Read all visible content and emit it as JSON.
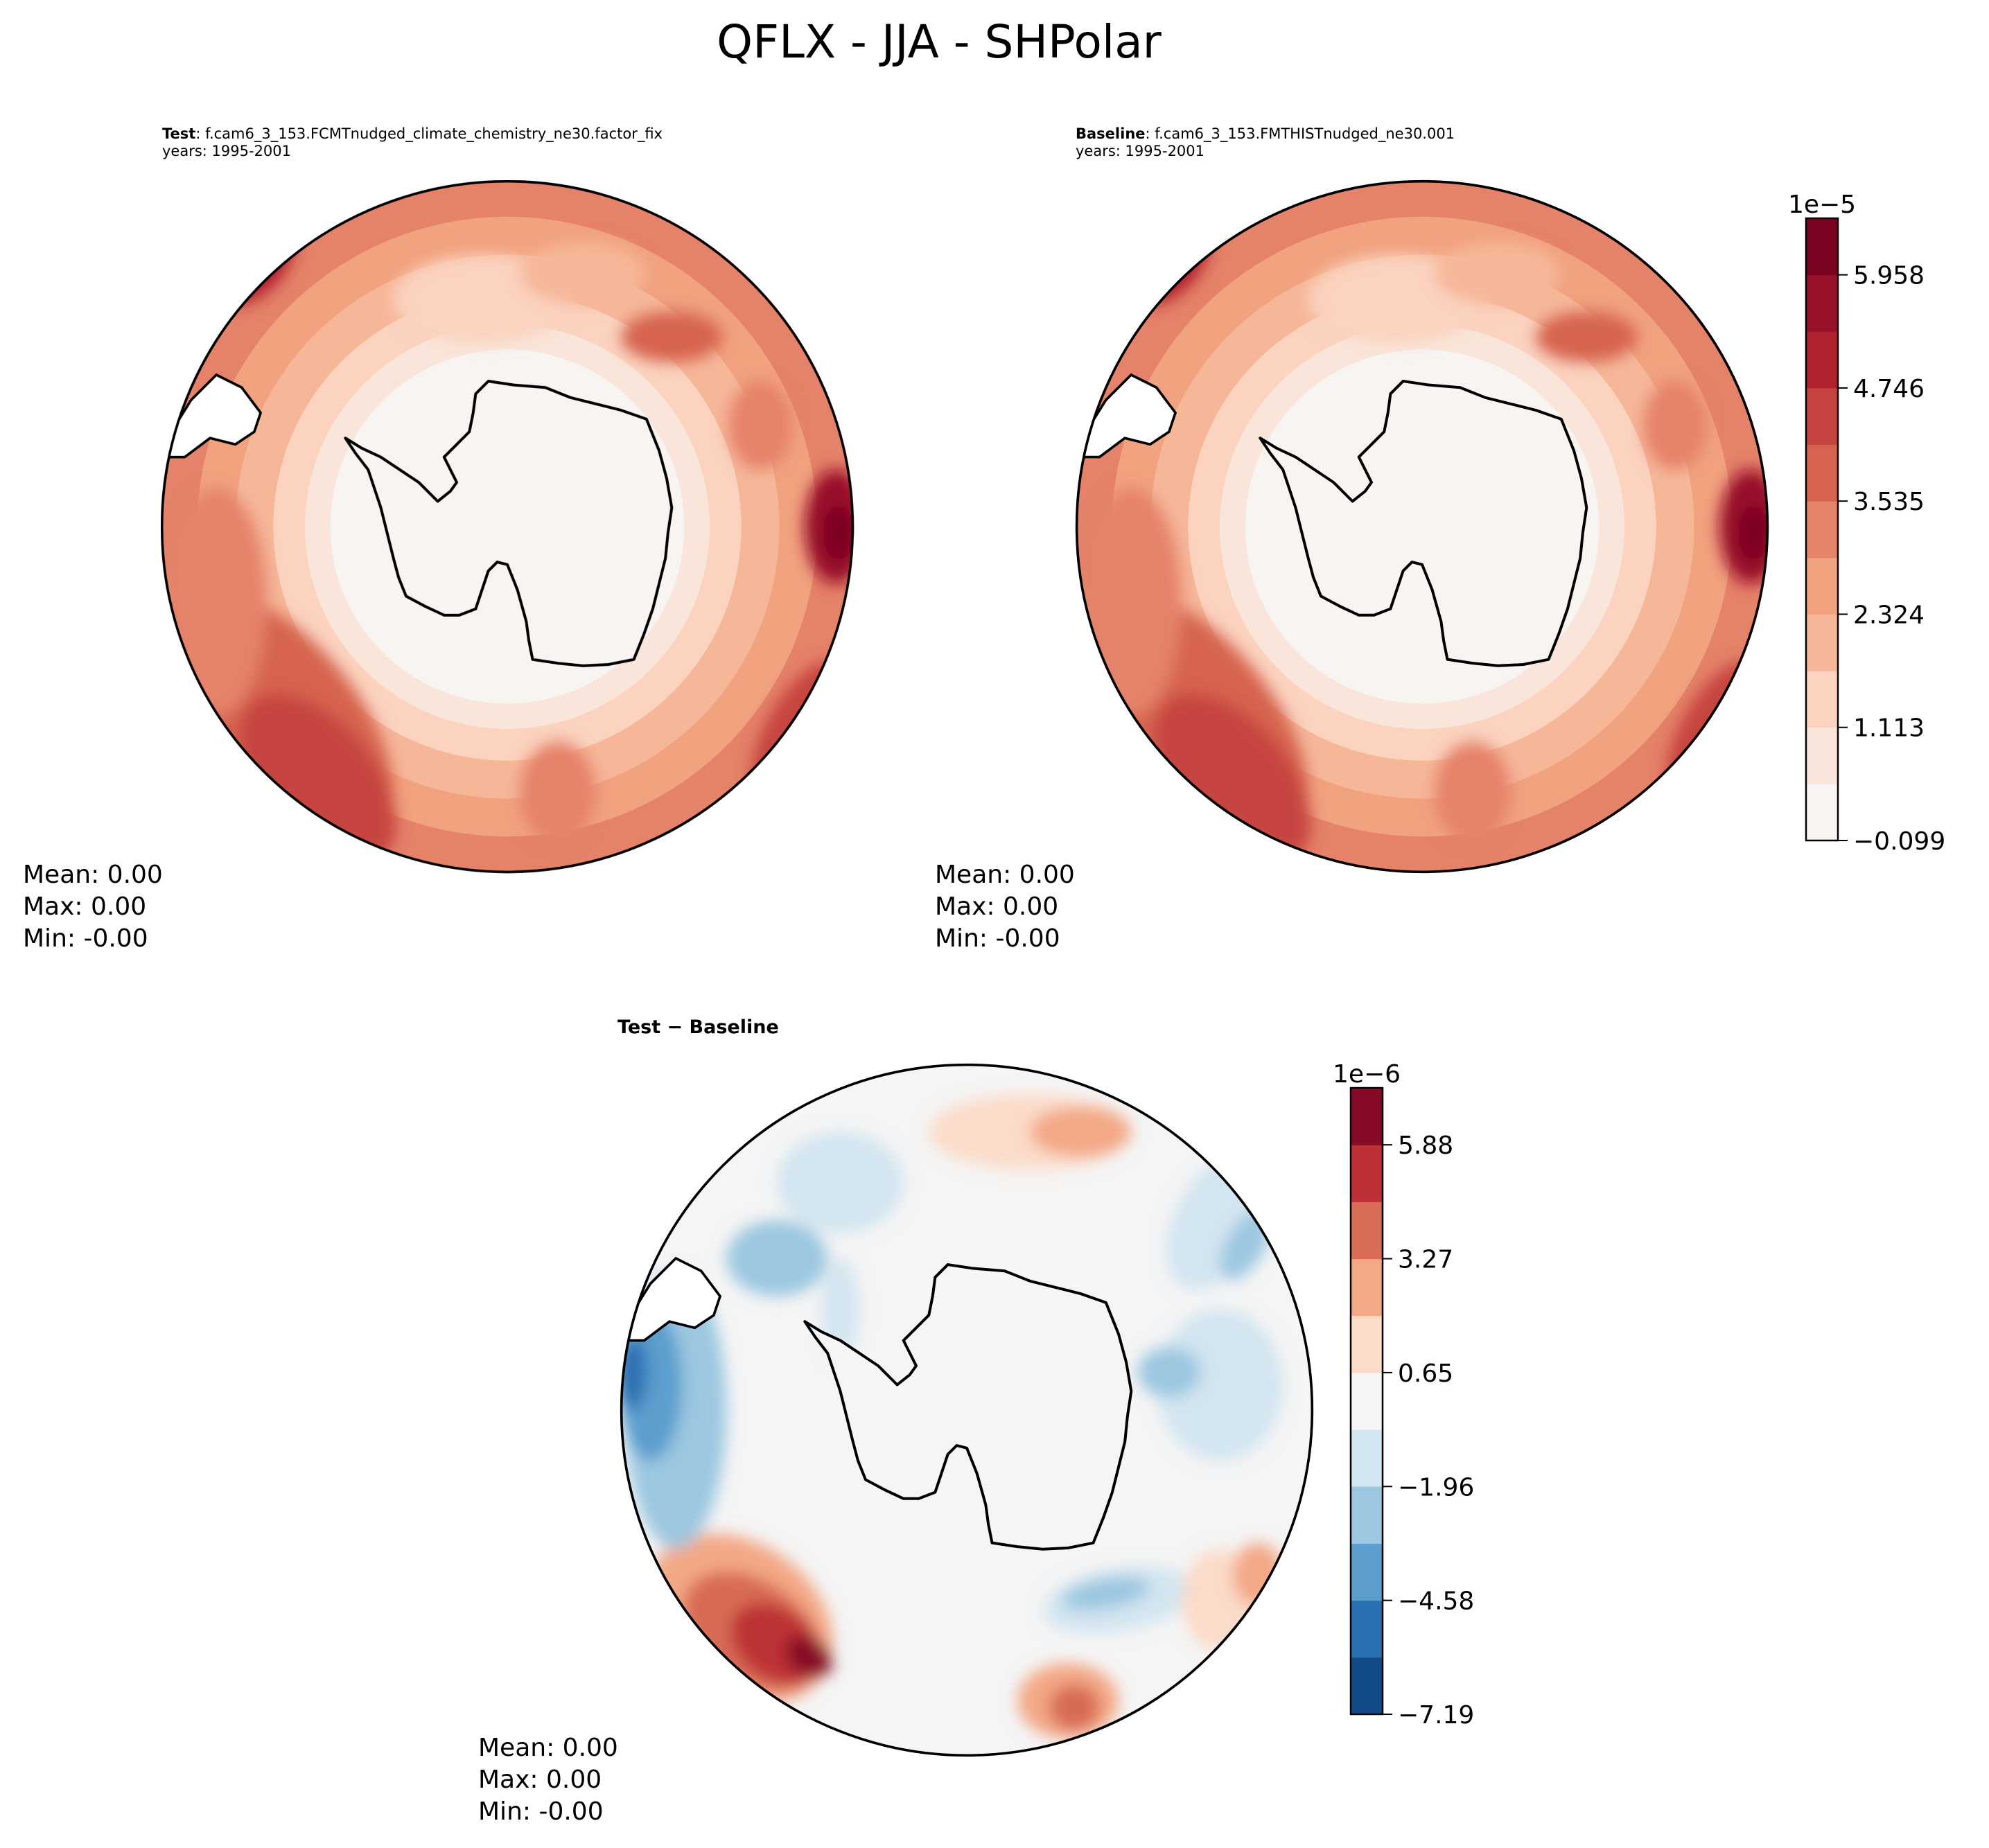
{
  "suptitle": "QFLX - JJA - SHPolar",
  "panels": [
    {
      "label_bold": "Test",
      "label_rest": ": f.cam6_3_153.FCMTnudged_climate_chemistry_ne30.factor_fix",
      "years": "years: 1995-2001",
      "stats": {
        "mean": "Mean:  0.00",
        "max": "Max:  0.00",
        "min": "Min: -0.00"
      }
    },
    {
      "label_bold": "Baseline",
      "label_rest": ": f.cam6_3_153.FMTHISTnudged_ne30.001",
      "years": "years: 1995-2001",
      "stats": {
        "mean": "Mean:  0.00",
        "max": "Max:  0.00",
        "min": "Min: -0.00"
      }
    },
    {
      "label_bold": "Test − Baseline",
      "label_rest": "",
      "years": "",
      "stats": {
        "mean": "Mean:  0.00",
        "max": "Max:  0.00",
        "min": "Min: -0.00"
      }
    }
  ],
  "chart_data": [
    {
      "type": "heatmap",
      "projection": "south-polar-stereographic",
      "panel": "Test",
      "colormap": "Reds (RdBu_r upper half)",
      "colorbar": {
        "scale_label": "1e−5",
        "ticks": [
          "−0.099",
          "1.113",
          "2.324",
          "3.535",
          "4.746",
          "5.958"
        ],
        "colors": [
          "#f7f4f2",
          "#f9e5da",
          "#fbd3bf",
          "#f6b799",
          "#f1a27f",
          "#e5826a",
          "#d6634f",
          "#c6443f",
          "#b1212f",
          "#98102a",
          "#7a0322"
        ]
      }
    },
    {
      "type": "heatmap",
      "projection": "south-polar-stereographic",
      "panel": "Baseline",
      "colorbar": "shared with Test"
    },
    {
      "type": "heatmap",
      "projection": "south-polar-stereographic",
      "panel": "Test − Baseline",
      "colormap": "RdBu_r",
      "colorbar": {
        "scale_label": "1e−6",
        "ticks": [
          "−7.19",
          "−4.58",
          "−1.96",
          "0.65",
          "3.27",
          "5.88"
        ],
        "colors": [
          "#124a87",
          "#2a71b2",
          "#5b9ecd",
          "#9bc7e0",
          "#d3e5f0",
          "#f5f5f5",
          "#fbdbc9",
          "#f3a886",
          "#d86b55",
          "#bd3036",
          "#870b26"
        ]
      }
    }
  ]
}
